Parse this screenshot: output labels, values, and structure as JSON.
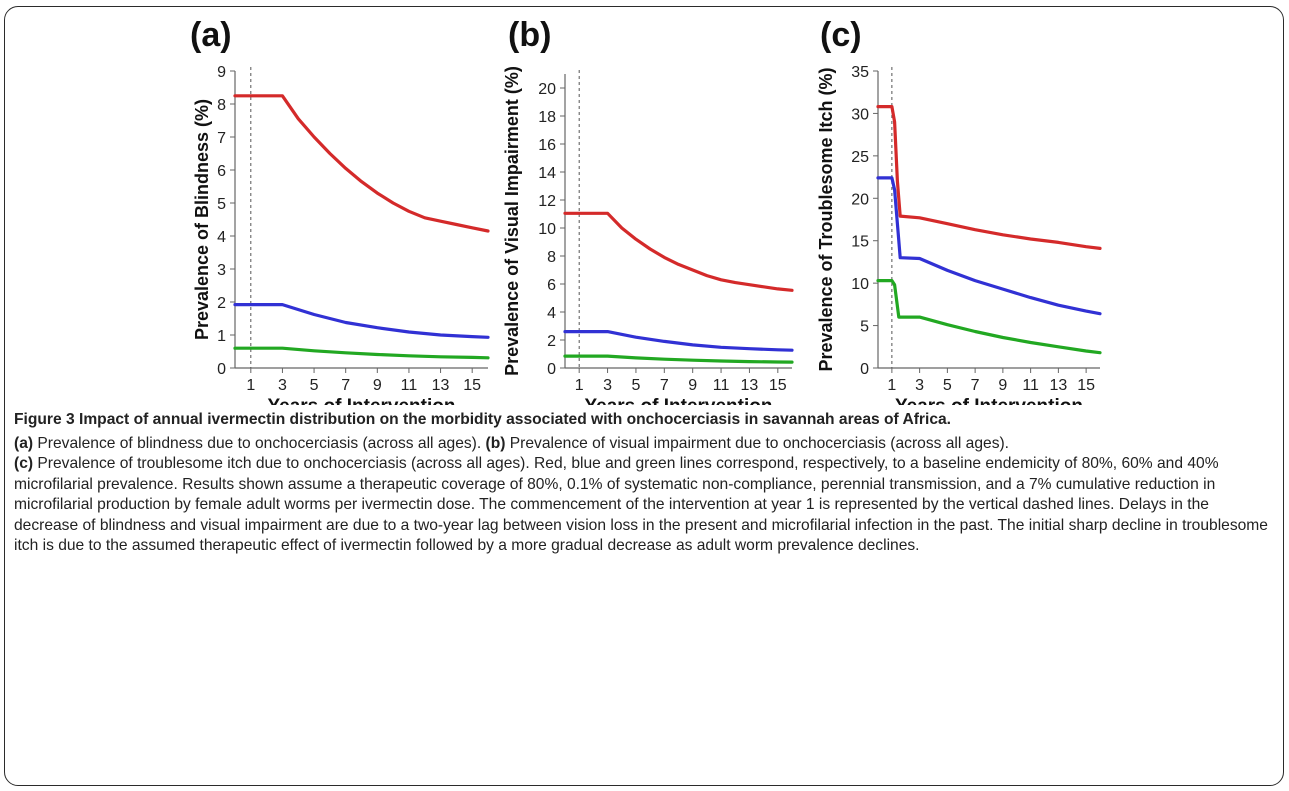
{
  "chart_data": [
    {
      "type": "line",
      "panel_label": "(a)",
      "ylabel": "Prevalence of Blindness (%)",
      "xlabel": "Years of Intervention",
      "ylim": [
        0,
        9
      ],
      "yticks": [
        0,
        1,
        2,
        3,
        4,
        5,
        6,
        7,
        8,
        9
      ],
      "xlim": [
        0,
        16
      ],
      "xticks": [
        1,
        3,
        5,
        7,
        9,
        11,
        13,
        15
      ],
      "intervention_start_year": 1,
      "series": [
        {
          "color": "#d42a2a",
          "points": [
            [
              0,
              8.25
            ],
            [
              3,
              8.25
            ],
            [
              4,
              7.55
            ],
            [
              5,
              7.0
            ],
            [
              6,
              6.5
            ],
            [
              7,
              6.05
            ],
            [
              8,
              5.65
            ],
            [
              9,
              5.3
            ],
            [
              10,
              5.0
            ],
            [
              11,
              4.75
            ],
            [
              12,
              4.55
            ],
            [
              13,
              4.45
            ],
            [
              14,
              4.35
            ],
            [
              15,
              4.25
            ],
            [
              16,
              4.15
            ]
          ]
        },
        {
          "color": "#3131d4",
          "points": [
            [
              0,
              1.92
            ],
            [
              3,
              1.92
            ],
            [
              5,
              1.62
            ],
            [
              7,
              1.38
            ],
            [
              9,
              1.22
            ],
            [
              11,
              1.09
            ],
            [
              13,
              1.0
            ],
            [
              15,
              0.95
            ],
            [
              16,
              0.93
            ]
          ]
        },
        {
          "color": "#22a822",
          "points": [
            [
              0,
              0.6
            ],
            [
              3,
              0.6
            ],
            [
              5,
              0.52
            ],
            [
              7,
              0.46
            ],
            [
              9,
              0.41
            ],
            [
              11,
              0.37
            ],
            [
              13,
              0.34
            ],
            [
              15,
              0.32
            ],
            [
              16,
              0.31
            ]
          ]
        }
      ]
    },
    {
      "type": "line",
      "panel_label": "(b)",
      "ylabel": "Prevalence of Visual Impairment (%)",
      "xlabel": "Years of Intervention",
      "ylim": [
        0,
        21
      ],
      "yticks": [
        0,
        2,
        4,
        6,
        8,
        10,
        12,
        14,
        16,
        18,
        20
      ],
      "xlim": [
        0,
        16
      ],
      "xticks": [
        1,
        3,
        5,
        7,
        9,
        11,
        13,
        15
      ],
      "intervention_start_year": 1,
      "series": [
        {
          "color": "#d42a2a",
          "points": [
            [
              0,
              11.05
            ],
            [
              3,
              11.05
            ],
            [
              4,
              10.0
            ],
            [
              5,
              9.2
            ],
            [
              6,
              8.5
            ],
            [
              7,
              7.9
            ],
            [
              8,
              7.4
            ],
            [
              9,
              7.0
            ],
            [
              10,
              6.6
            ],
            [
              11,
              6.3
            ],
            [
              12,
              6.1
            ],
            [
              13,
              5.95
            ],
            [
              14,
              5.8
            ],
            [
              15,
              5.65
            ],
            [
              16,
              5.55
            ]
          ]
        },
        {
          "color": "#3131d4",
          "points": [
            [
              0,
              2.6
            ],
            [
              3,
              2.6
            ],
            [
              5,
              2.2
            ],
            [
              7,
              1.9
            ],
            [
              9,
              1.65
            ],
            [
              11,
              1.48
            ],
            [
              13,
              1.38
            ],
            [
              15,
              1.3
            ],
            [
              16,
              1.27
            ]
          ]
        },
        {
          "color": "#22a822",
          "points": [
            [
              0,
              0.85
            ],
            [
              3,
              0.85
            ],
            [
              5,
              0.72
            ],
            [
              7,
              0.63
            ],
            [
              9,
              0.56
            ],
            [
              11,
              0.5
            ],
            [
              13,
              0.46
            ],
            [
              15,
              0.43
            ],
            [
              16,
              0.42
            ]
          ]
        }
      ]
    },
    {
      "type": "line",
      "panel_label": "(c)",
      "ylabel": "Prevalence of Troublesome Itch (%)",
      "xlabel": "Years of Intervention",
      "ylim": [
        0,
        35
      ],
      "yticks": [
        0,
        5,
        10,
        15,
        20,
        25,
        30,
        35
      ],
      "xlim": [
        0,
        16
      ],
      "xticks": [
        1,
        3,
        5,
        7,
        9,
        11,
        13,
        15
      ],
      "intervention_start_year": 1,
      "series": [
        {
          "color": "#d42a2a",
          "points": [
            [
              0,
              30.8
            ],
            [
              1,
              30.8
            ],
            [
              1.2,
              29.0
            ],
            [
              1.4,
              22.0
            ],
            [
              1.6,
              17.9
            ],
            [
              3,
              17.7
            ],
            [
              5,
              17.0
            ],
            [
              7,
              16.3
            ],
            [
              9,
              15.7
            ],
            [
              11,
              15.2
            ],
            [
              13,
              14.8
            ],
            [
              15,
              14.3
            ],
            [
              16,
              14.1
            ]
          ]
        },
        {
          "color": "#3131d4",
          "points": [
            [
              0,
              22.4
            ],
            [
              1,
              22.4
            ],
            [
              1.2,
              21.0
            ],
            [
              1.4,
              17.0
            ],
            [
              1.6,
              13.0
            ],
            [
              3,
              12.9
            ],
            [
              5,
              11.5
            ],
            [
              7,
              10.3
            ],
            [
              9,
              9.3
            ],
            [
              11,
              8.3
            ],
            [
              13,
              7.4
            ],
            [
              15,
              6.7
            ],
            [
              16,
              6.4
            ]
          ]
        },
        {
          "color": "#22a822",
          "points": [
            [
              0,
              10.3
            ],
            [
              1,
              10.3
            ],
            [
              1.2,
              9.8
            ],
            [
              1.5,
              6.0
            ],
            [
              3,
              6.0
            ],
            [
              5,
              5.1
            ],
            [
              7,
              4.3
            ],
            [
              9,
              3.6
            ],
            [
              11,
              3.0
            ],
            [
              13,
              2.5
            ],
            [
              15,
              2.0
            ],
            [
              16,
              1.8
            ]
          ]
        }
      ]
    }
  ],
  "caption": {
    "title": "Figure 3 Impact of annual ivermectin distribution on the morbidity associated with onchocerciasis in savannah areas of Africa.",
    "line1_label": "(a)",
    "line1_text": " Prevalence of blindness due to onchocerciasis (across all ages). ",
    "line1b_label": "(b)",
    "line1b_text": " Prevalence of visual impairment due to onchocerciasis (across all ages).",
    "body_label": "(c)",
    "body_text": " Prevalence of troublesome itch due to onchocerciasis (across all ages). Red, blue and green lines correspond, respectively, to a baseline endemicity of 80%, 60% and 40% microfilarial prevalence. Results shown assume a therapeutic coverage of 80%, 0.1% of systematic non-compliance, perennial transmission, and a 7% cumulative reduction in microfilarial production by female adult worms per ivermectin dose. The commencement of the intervention at year 1 is represented by the vertical dashed lines. Delays in the decrease of blindness and visual impairment are due to a two-year lag between vision loss in the present and microfilarial infection in the past. The initial sharp decline in troublesome itch is due to the assumed therapeutic effect of ivermectin followed by a more gradual decrease as adult worm prevalence declines."
  }
}
